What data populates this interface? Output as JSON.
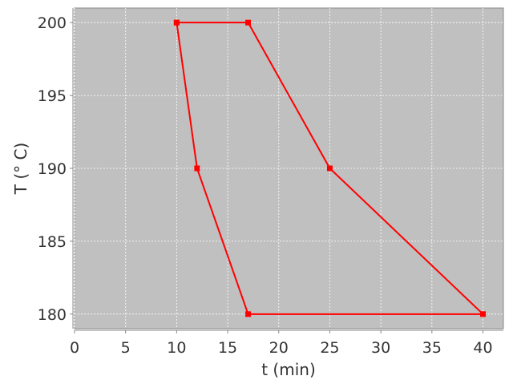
{
  "chart_data": {
    "type": "line",
    "title": "",
    "xlabel": "t (min)",
    "ylabel": "T (° C)",
    "xlim": [
      0,
      42
    ],
    "ylim": [
      179,
      201
    ],
    "xticks": [
      0,
      5,
      10,
      15,
      20,
      25,
      30,
      35,
      40
    ],
    "yticks": [
      180,
      185,
      190,
      195,
      200
    ],
    "grid": true,
    "background_color": "#c0c0c0",
    "series": [
      {
        "color": "#ff0000",
        "marker": "square",
        "points": [
          [
            10,
            200
          ],
          [
            17,
            200
          ],
          [
            25,
            190
          ],
          [
            40,
            180
          ],
          [
            17,
            180
          ],
          [
            12,
            190
          ],
          [
            10,
            200
          ]
        ]
      }
    ]
  }
}
